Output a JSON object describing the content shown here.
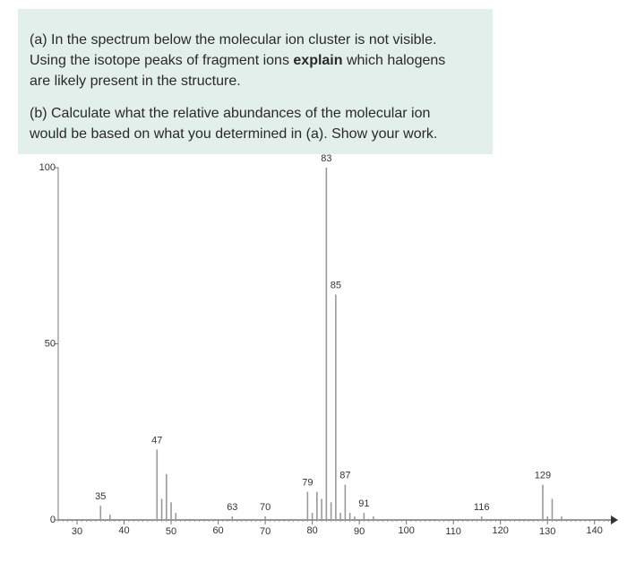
{
  "question": {
    "a_line1": "(a) In the spectrum below the molecular ion cluster is not visible.",
    "a_line2_start": "Using the isotope peaks of fragment ions ",
    "a_line2_bold": "explain",
    "a_line2_end": " which halogens",
    "a_line3": "are likely present in the structure.",
    "b_line1": "(b) Calculate what the relative abundances of the molecular ion",
    "b_line2": "would be based on what you determined in (a). Show your work."
  },
  "chart_data": {
    "type": "bar",
    "color": "#9a9a9a",
    "x": [
      35,
      37,
      47,
      48,
      49,
      50,
      51,
      63,
      70,
      79,
      80,
      81,
      82,
      83,
      84,
      85,
      86,
      87,
      88,
      89,
      91,
      93,
      116,
      129,
      130,
      131,
      133
    ],
    "values": [
      4,
      1.5,
      20,
      6,
      13,
      5,
      2,
      1,
      1,
      8,
      2,
      8,
      6,
      100,
      5,
      64,
      2,
      10,
      2,
      1,
      2,
      1,
      1,
      10,
      1,
      6,
      1
    ],
    "peak_labels": [
      "35",
      null,
      "47",
      null,
      null,
      null,
      null,
      "63",
      "70",
      "79",
      null,
      null,
      null,
      "83",
      null,
      "85",
      null,
      "87",
      null,
      null,
      "91",
      null,
      "116",
      "129",
      null,
      null,
      null
    ],
    "xlim": [
      26,
      145
    ],
    "xticks": [
      30,
      40,
      50,
      60,
      70,
      80,
      90,
      100,
      110,
      120,
      130,
      140
    ],
    "ylim": [
      0,
      100
    ],
    "yticks": [
      0,
      50,
      100
    ]
  }
}
